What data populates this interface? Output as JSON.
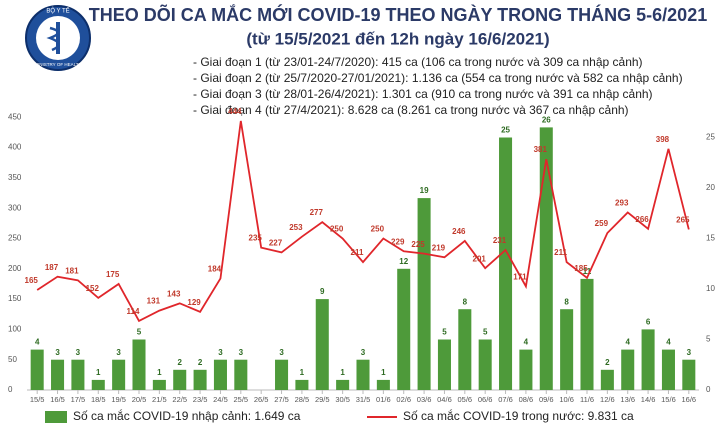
{
  "logo_text": [
    "BỘ Y TẾ",
    "MINISTRY OF HEALTH"
  ],
  "chart_data": {
    "type": "combo",
    "title": "THEO DÕI CA MẮC MỚI COVID-19 THEO NGÀY TRONG THÁNG 5-6/2021",
    "subtitle": "(từ 15/5/2021 đến 12h ngày 16/6/2021)",
    "notes": [
      "- Giai đoạn 1 (từ 23/01-24/7/2020): 415 ca (106 ca trong nước và 309 ca nhập cảnh)",
      "- Giai đoạn 2 (từ 25/7/2020-27/01/2021): 1.136 ca (554 ca trong nước và 582 ca nhập cảnh)",
      "- Giai đoạn 3 (từ 28/01-26/4/2021): 1.301 ca (910 ca trong nước và 391 ca nhập cảnh)",
      "- Giai đoạn 4 (từ 27/4/2021): 8.628 ca (8.261 ca trong nước và 367 ca nhập cảnh)"
    ],
    "categories": [
      "15/5",
      "16/5",
      "17/5",
      "18/5",
      "19/5",
      "20/5",
      "21/5",
      "22/5",
      "23/5",
      "24/5",
      "25/5",
      "26/5",
      "27/5",
      "28/5",
      "29/5",
      "30/5",
      "31/5",
      "01/6",
      "02/6",
      "03/6",
      "04/6",
      "05/6",
      "06/6",
      "07/6",
      "08/6",
      "09/6",
      "10/6",
      "11/6",
      "12/6",
      "13/6",
      "14/6",
      "15/6",
      "16/6"
    ],
    "series": [
      {
        "name": "Số ca mắc COVID-19 nhập cảnh: 1.649 ca",
        "type": "bar",
        "axis": "y2",
        "color": "#4e9a3a",
        "values": [
          4,
          3,
          3,
          1,
          3,
          5,
          1,
          2,
          2,
          3,
          3,
          null,
          3,
          1,
          9,
          1,
          3,
          1,
          12,
          19,
          5,
          8,
          5,
          25,
          4,
          26,
          8,
          11,
          2,
          4,
          6,
          4,
          3
        ]
      },
      {
        "name": "Số ca mắc COVID-19 trong nước: 9.831 ca",
        "type": "line",
        "color": "#e0262b",
        "values": [
          165,
          187,
          181,
          152,
          175,
          114,
          131,
          143,
          129,
          184,
          444,
          235,
          227,
          253,
          277,
          250,
          211,
          250,
          229,
          225,
          219,
          246,
          201,
          231,
          171,
          381,
          211,
          185,
          259,
          293,
          266,
          398,
          265
        ]
      }
    ],
    "ylim": [
      0,
      500
    ],
    "yticks": [
      0,
      50,
      100,
      150,
      200,
      250,
      300,
      350,
      400,
      450
    ],
    "y2lim": [
      0,
      30
    ],
    "y2ticks": [
      0,
      5,
      10,
      15,
      20,
      25
    ]
  }
}
